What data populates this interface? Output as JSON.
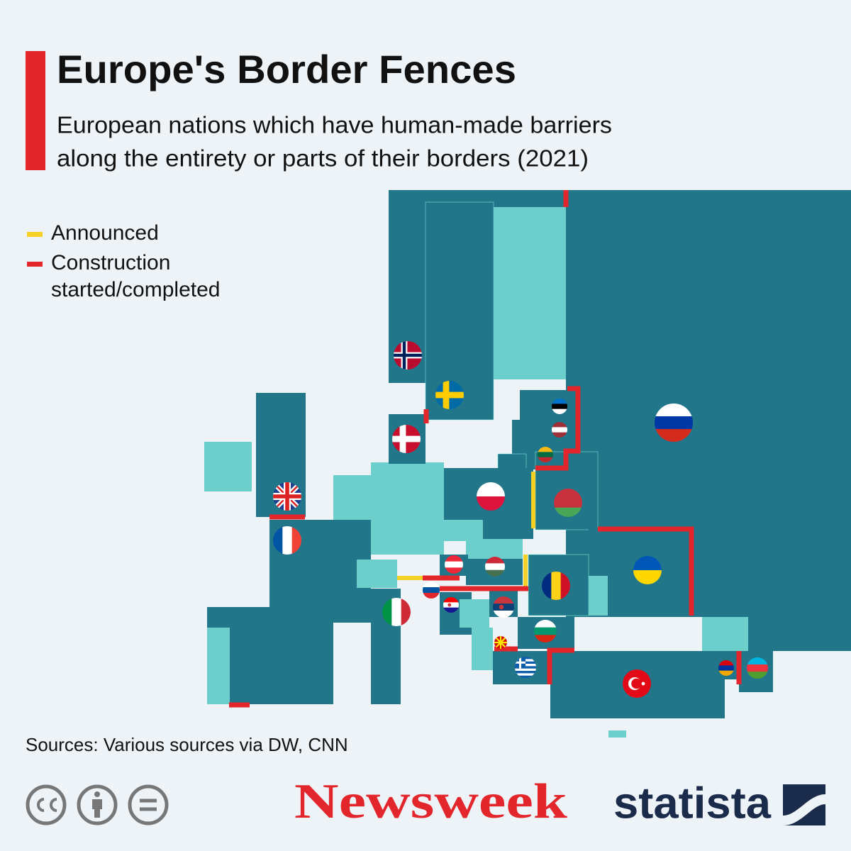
{
  "header": {
    "title": "Europe's Border Fences",
    "subtitle": [
      "European nations which have human-made barriers",
      "along the entirety or parts of their borders (2021)"
    ]
  },
  "legend": {
    "items": [
      {
        "label": [
          "Announced"
        ],
        "color": "#f5d027"
      },
      {
        "label": [
          "Construction",
          "started/completed"
        ],
        "color": "#e3262c"
      }
    ]
  },
  "footer": {
    "source": "Sources: Various sources via DW, CNN",
    "brands": [
      "Newsweek",
      "statista"
    ]
  }
}
